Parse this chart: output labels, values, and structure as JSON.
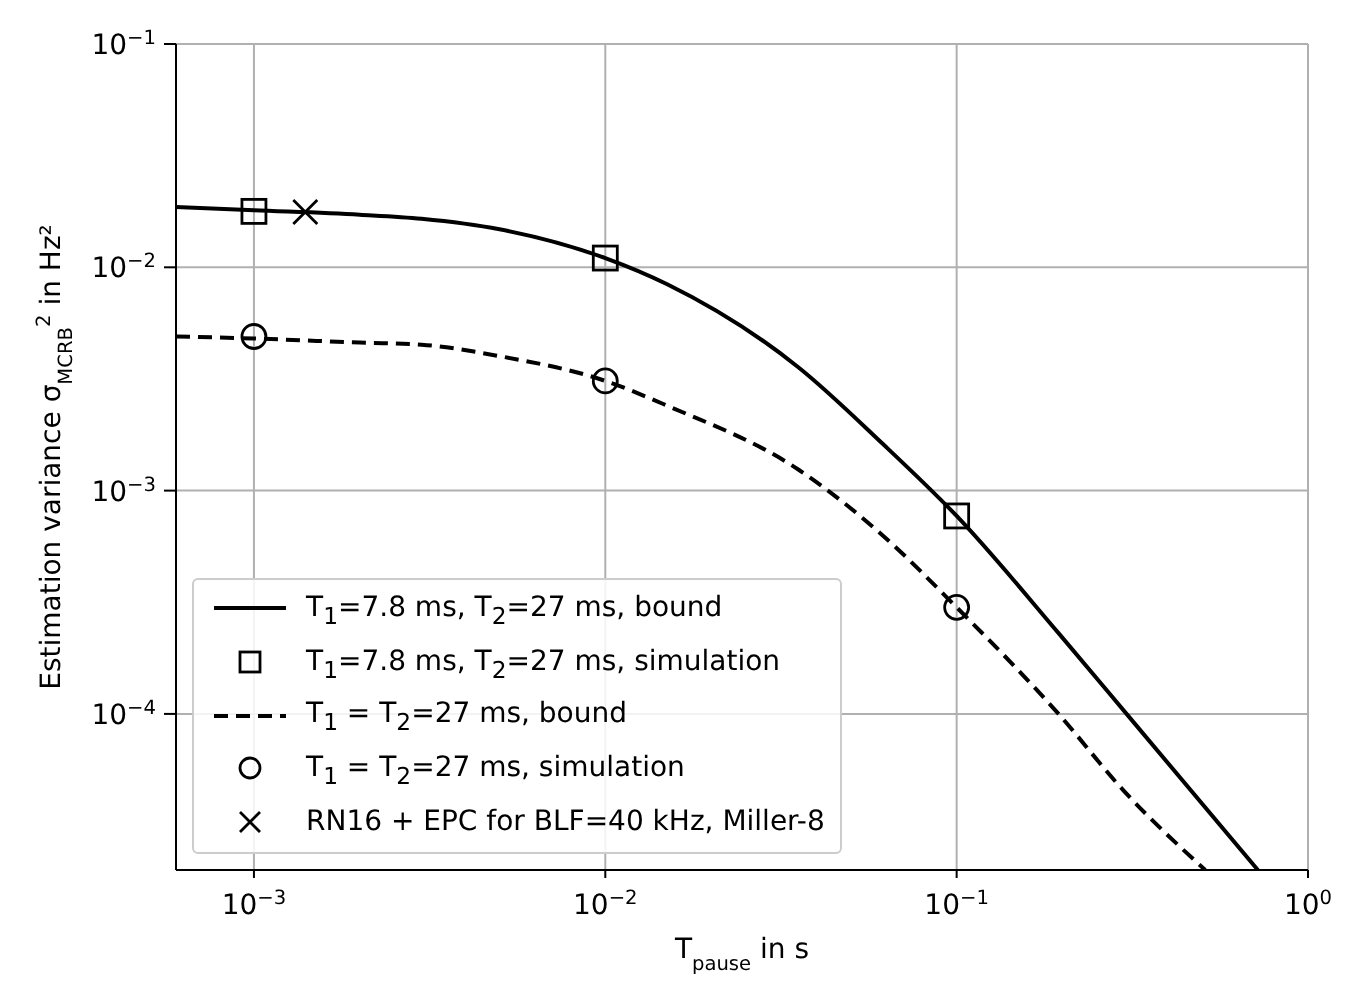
{
  "chart_data": {
    "type": "line",
    "xlabel": "T$_{pause}$ in s",
    "ylabel": "Estimation variance σ$_{MCRB}$$^{2}$ in Hz²",
    "log": "xy",
    "xlim": [
      0.0006,
      1
    ],
    "ylim": [
      2e-05,
      0.1
    ],
    "xticks": [
      {
        "value": 0.001,
        "label": "10$^{−3}$"
      },
      {
        "value": 0.01,
        "label": "10$^{−2}$"
      },
      {
        "value": 0.1,
        "label": "10$^{−1}$"
      },
      {
        "value": 1,
        "label": "10$^{0}$"
      }
    ],
    "yticks": [
      {
        "value": 0.0001,
        "label": "10$^{−4}$"
      },
      {
        "value": 0.001,
        "label": "10$^{−3}$"
      },
      {
        "value": 0.01,
        "label": "10$^{−2}$"
      },
      {
        "value": 0.1,
        "label": "10$^{−1}$"
      }
    ],
    "grid": true,
    "legend": "bottom left",
    "series": [
      {
        "name": "T$_{1}$=7.8 ms, T$_{2}$=27 ms, bound",
        "color": "#000000",
        "line_style": "solid",
        "marker": "none",
        "x": [
          0.0006,
          0.001,
          0.002,
          0.003,
          0.005,
          0.01,
          0.015,
          0.0355,
          0.0616,
          0.1,
          0.195,
          0.313,
          0.72
        ],
        "values": [
          0.0186,
          0.018,
          0.0172,
          0.0165,
          0.0148,
          0.011,
          0.0084,
          0.00356,
          0.00162,
          0.00077,
          0.00023,
          9.5e-05,
          2e-05
        ]
      },
      {
        "name": "T$_{1}$=7.8 ms, T$_{2}$=27 ms, simulation",
        "type": "scatter",
        "color": "#000000",
        "marker": "square",
        "x": [
          0.001,
          0.01,
          0.1
        ],
        "values": [
          0.0178,
          0.011,
          0.00077
        ]
      },
      {
        "name": "T$_{1}$ = T$_{2}$=27 ms, bound",
        "color": "#000000",
        "line_style": "dashed",
        "marker": "none",
        "x": [
          0.0006,
          0.001,
          0.002,
          0.003,
          0.005,
          0.01,
          0.015,
          0.0355,
          0.0616,
          0.1,
          0.195,
          0.3,
          0.51
        ],
        "values": [
          0.0049,
          0.0048,
          0.0046,
          0.0045,
          0.004,
          0.0031,
          0.0024,
          0.00124,
          0.00063,
          0.0003,
          0.0001,
          4.5e-05,
          2e-05
        ]
      },
      {
        "name": "T$_{1}$ = T$_{2}$=27 ms, simulation",
        "type": "scatter",
        "color": "#000000",
        "marker": "circle",
        "x": [
          0.001,
          0.01,
          0.1
        ],
        "values": [
          0.0049,
          0.0031,
          0.0003
        ]
      },
      {
        "name": "RN16 + EPC for BLF=40 kHz, Miller-8",
        "type": "scatter",
        "color": "#000000",
        "marker": "cross",
        "x": [
          0.0014
        ],
        "values": [
          0.0177
        ]
      }
    ]
  }
}
